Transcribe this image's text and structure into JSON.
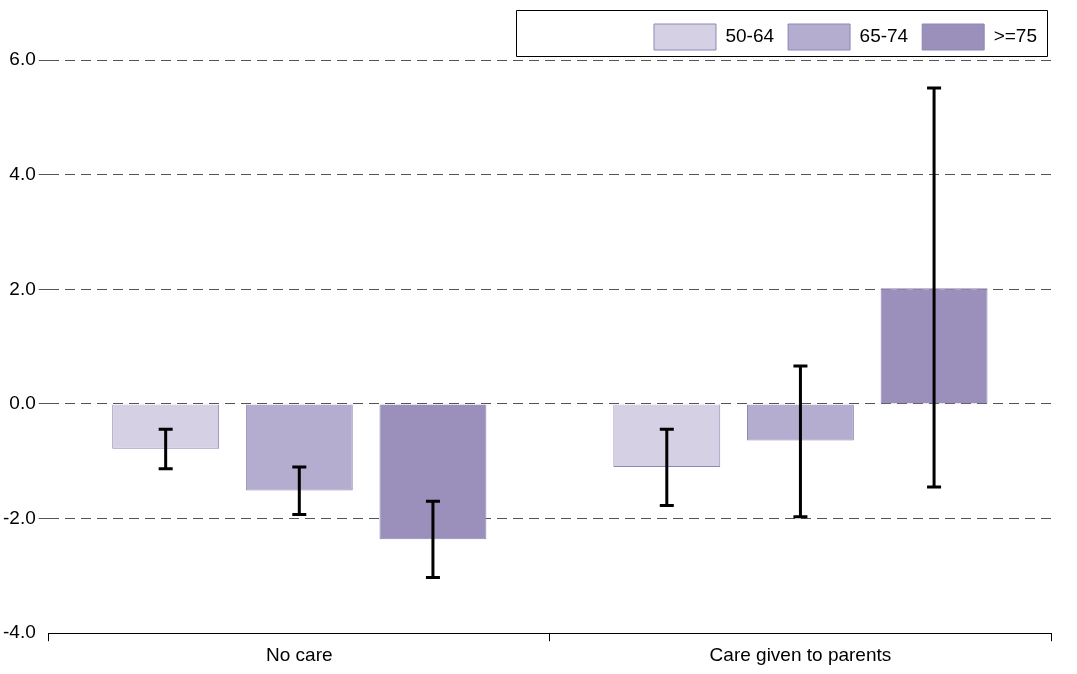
{
  "chart_data": {
    "type": "bar",
    "categories": [
      "No care",
      "Care given to parents"
    ],
    "series": [
      {
        "name": "50-64",
        "color": "#d5d0e3",
        "values": [
          -0.78,
          -1.1
        ],
        "errors": [
          [
            -1.13,
            -0.44
          ],
          [
            -1.77,
            -0.44
          ]
        ]
      },
      {
        "name": "65-74",
        "color": "#b5add0",
        "values": [
          -1.51,
          -0.64
        ],
        "errors": [
          [
            -1.93,
            -1.1
          ],
          [
            -1.97,
            0.66
          ]
        ]
      },
      {
        "name": ">=75",
        "color": "#9b90bb",
        "values": [
          -2.36,
          2.02
        ],
        "errors": [
          [
            -3.03,
            -1.7
          ],
          [
            -1.45,
            5.51
          ]
        ]
      }
    ],
    "ylim": [
      -4,
      6
    ],
    "yticks": [
      {
        "value": -4,
        "label": "-4.0"
      },
      {
        "value": -2,
        "label": "-2.0"
      },
      {
        "value": 0,
        "label": "0.0"
      },
      {
        "value": 2,
        "label": "2.0"
      },
      {
        "value": 4,
        "label": "4.0"
      },
      {
        "value": 6,
        "label": "6.0"
      }
    ],
    "grid": "y",
    "legend": "top right"
  }
}
